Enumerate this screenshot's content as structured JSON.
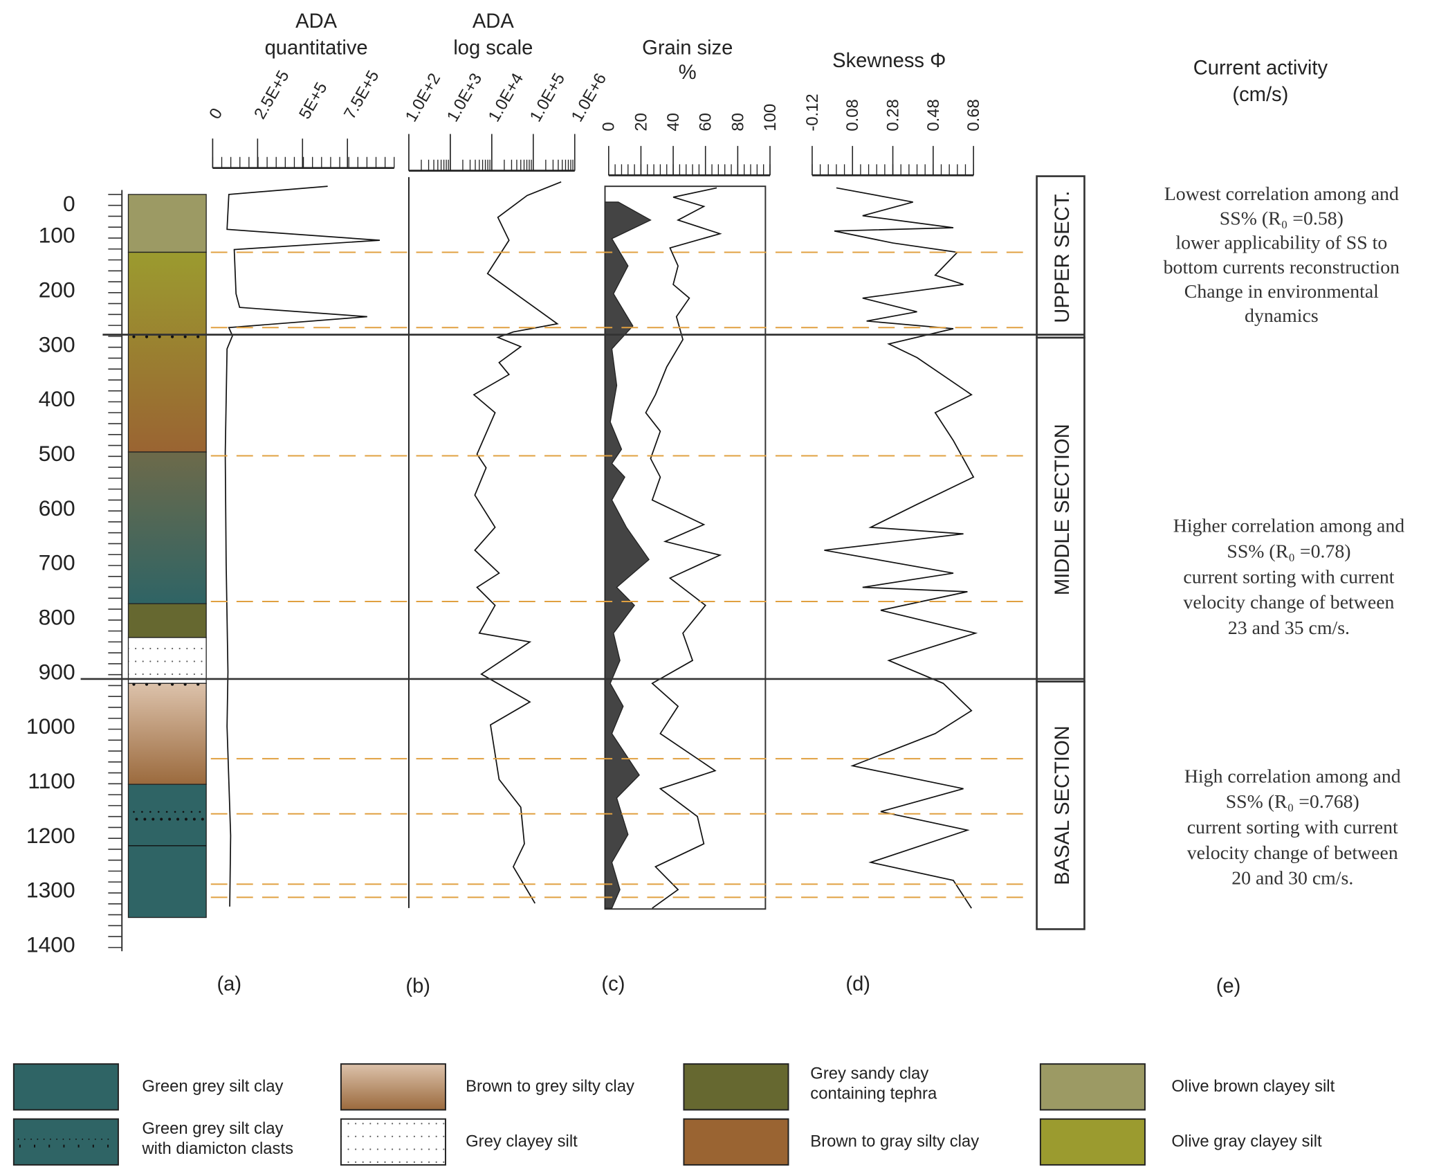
{
  "titles": {
    "ada_quant": [
      "ADA",
      "quantitative"
    ],
    "ada_log": [
      "ADA",
      "log scale"
    ],
    "grain": [
      "Grain size",
      "%"
    ],
    "skew": [
      "Skewness Φ"
    ],
    "current": [
      "Current activity",
      "(cm/s)"
    ]
  },
  "panel_labels": [
    "(a)",
    "(b)",
    "(c)",
    "(d)",
    "(e)"
  ],
  "sections": [
    {
      "label": "UPPER SECT.",
      "top": 0,
      "bottom": 287
    },
    {
      "label": "MIDDLE SECTION",
      "top": 287,
      "bottom": 918
    },
    {
      "label": "BASAL SECTION",
      "top": 918,
      "bottom": 1370
    }
  ],
  "notes": [
    {
      "lines": [
        "Lowest correlation among and",
        "SS% (R₀ =0.58)",
        "lower applicability of SS to",
        "bottom currents reconstruction",
        "Change in environmental",
        "dynamics"
      ]
    },
    {
      "lines": [
        "Higher correlation among and",
        "SS% (R₀ =0.78)",
        "current sorting with current",
        "velocity change of between",
        "23 and 35 cm/s."
      ]
    },
    {
      "lines": [
        "High correlation among and",
        "SS% (R₀ =0.768)",
        "current sorting with current",
        "velocity change of between",
        "20 and 30 cm/s."
      ]
    }
  ],
  "legend": [
    {
      "key": "green_grey",
      "label": [
        "Green grey silt clay"
      ]
    },
    {
      "key": "green_grey_diamicton",
      "label": [
        "Green grey silt clay",
        "with diamicton clasts"
      ]
    },
    {
      "key": "brown_grey_grad",
      "label": [
        "Brown to grey silty clay"
      ]
    },
    {
      "key": "grey_clayey_silt",
      "label": [
        "Grey clayey silt"
      ]
    },
    {
      "key": "grey_sandy_tephra",
      "label": [
        "Grey sandy clay",
        "containing tephra"
      ]
    },
    {
      "key": "brown_gray",
      "label": [
        "Brown to gray silty clay"
      ]
    },
    {
      "key": "olive_brown",
      "label": [
        "Olive brown clayey silt"
      ]
    },
    {
      "key": "olive_gray",
      "label": [
        "Olive gray clayey silt"
      ]
    }
  ],
  "colors": {
    "green_grey": "#2f6465",
    "brown_grey_top": "#dcc2ab",
    "brown_grey_bottom": "#9b6a3d",
    "grey_sandy_tephra": "#666830",
    "brown_gray": "#9a6432",
    "olive_brown": "#9c9a64",
    "olive_gray": "#9b9b2f",
    "dashed": "#e0a040",
    "fill": "#444444"
  },
  "lithology": [
    {
      "top": 25,
      "bottom": 131,
      "type": "olive_brown"
    },
    {
      "top": 131,
      "bottom": 497,
      "type": "olive_gray",
      "to": "brown_gray"
    },
    {
      "top": 497,
      "bottom": 775,
      "type": "brown_gray",
      "to": "green_grey"
    },
    {
      "top": 775,
      "bottom": 837,
      "type": "grey_sandy_tephra"
    },
    {
      "top": 837,
      "bottom": 921,
      "type": "grey_clayey_silt"
    },
    {
      "top": 921,
      "bottom": 1106,
      "type": "brown_grey_grad"
    },
    {
      "top": 1106,
      "bottom": 1350,
      "type": "green_grey_diamicton"
    }
  ],
  "chart_data": {
    "type": "line",
    "y_axis": {
      "label": "",
      "ticks": [
        0,
        100,
        200,
        300,
        400,
        500,
        600,
        700,
        800,
        900,
        1000,
        1100,
        1200,
        1300,
        1400
      ],
      "range": [
        0,
        1400
      ],
      "inverted": true
    },
    "event_depths": [
      131,
      269,
      504,
      771,
      1059,
      1160,
      1289,
      1313
    ],
    "section_boundaries": [
      287,
      918
    ],
    "panels": [
      {
        "id": "a",
        "ticks": [
          "0",
          "2.5E+5",
          "5E+5",
          "7.5E+5"
        ],
        "tick_values": [
          0,
          250000,
          500000,
          750000
        ],
        "range": [
          0,
          1010000
        ],
        "scale": "linear",
        "depth": [
          10,
          25,
          89,
          109,
          126,
          207,
          232,
          249,
          269,
          284,
          308,
          500,
          700,
          900,
          1000,
          1100,
          1200,
          1330
        ],
        "values": [
          640000,
          90000,
          80000,
          930000,
          120000,
          130000,
          150000,
          860000,
          90000,
          110000,
          80000,
          70000,
          75000,
          85000,
          80000,
          90000,
          100000,
          95000
        ]
      },
      {
        "id": "b",
        "ticks": [
          "1.0E+2",
          "1.0E+3",
          "1.0E+4",
          "1.0E+5",
          "1.0E+6"
        ],
        "tick_values": [
          100,
          1000,
          10000,
          100000,
          1000000
        ],
        "range": [
          100,
          1000000
        ],
        "scale": "log",
        "depth": [
          2,
          27,
          67,
          109,
          170,
          262,
          277,
          287,
          304,
          333,
          355,
          392,
          425,
          501,
          526,
          576,
          635,
          677,
          719,
          745,
          778,
          829,
          845,
          904,
          955,
          997,
          1097,
          1148,
          1215,
          1257,
          1324
        ],
        "values": [
          470000,
          71000,
          14000,
          26000,
          7900,
          380000,
          33000,
          14000,
          50000,
          15000,
          26000,
          3700,
          12000,
          4400,
          7300,
          3900,
          12000,
          3900,
          15000,
          4400,
          12000,
          5000,
          83000,
          5600,
          83000,
          9300,
          15000,
          50000,
          61000,
          33000,
          110000
        ]
      },
      {
        "id": "c",
        "ticks": [
          "0",
          "20",
          "40",
          "60",
          "80",
          "100"
        ],
        "tick_values": [
          0,
          20,
          40,
          60,
          80,
          100
        ],
        "range": [
          0,
          100
        ],
        "scale": "linear",
        "series": [
          {
            "style": "line",
            "depth": [
              13,
              30,
              47,
              72,
              97,
              123,
              156,
              190,
              215,
              249,
              291,
              341,
              392,
              425,
              459,
              509,
              543,
              585,
              630,
              661,
              686,
              728,
              778,
              829,
              879,
              921,
              963,
              1013,
              1081,
              1114,
              1165,
              1215,
              1257,
              1299,
              1333
            ],
            "values": [
              67,
              40,
              59,
              43,
              69,
              38,
              43,
              40,
              50,
              42,
              46,
              36,
              29,
              23,
              32,
              26,
              32,
              27,
              59,
              35,
              69,
              38,
              60,
              46,
              52,
              27,
              43,
              32,
              66,
              32,
              55,
              59,
              29,
              43,
              27
            ]
          },
          {
            "style": "filled",
            "depth": [
              39,
              72,
              106,
              156,
              207,
              266,
              308,
              375,
              442,
              492,
              518,
              543,
              585,
              635,
              694,
              745,
              778,
              829,
              879,
              921,
              963,
              1013,
              1089,
              1131,
              1198,
              1249,
              1299,
              1333
            ],
            "values": [
              6,
              26,
              2,
              12,
              3,
              15,
              2,
              5,
              1,
              8,
              2,
              10,
              2,
              11,
              25,
              5,
              16,
              3,
              7,
              1,
              9,
              2,
              19,
              5,
              12,
              2,
              7,
              2
            ]
          }
        ]
      },
      {
        "id": "d",
        "ticks": [
          "-0.12",
          "0.08",
          "0.28",
          "0.48",
          "0.68"
        ],
        "tick_values": [
          -0.12,
          0.08,
          0.28,
          0.48,
          0.68
        ],
        "range": [
          -0.12,
          0.68
        ],
        "scale": "linear",
        "depth": [
          13,
          39,
          64,
          86,
          92,
          114,
          131,
          173,
          190,
          215,
          240,
          257,
          271,
          299,
          324,
          392,
          425,
          476,
          543,
          593,
          635,
          647,
          677,
          719,
          745,
          753,
          787,
          829,
          879,
          921,
          971,
          1013,
          1072,
          1114,
          1156,
          1190,
          1249,
          1282,
          1333
        ],
        "values": [
          0.0,
          0.38,
          0.13,
          0.58,
          -0.01,
          0.28,
          0.6,
          0.49,
          0.63,
          0.13,
          0.4,
          0.15,
          0.58,
          0.26,
          0.4,
          0.67,
          0.49,
          0.58,
          0.68,
          0.4,
          0.17,
          0.63,
          -0.06,
          0.58,
          0.13,
          0.65,
          0.22,
          0.69,
          0.26,
          0.53,
          0.67,
          0.49,
          0.08,
          0.63,
          0.22,
          0.65,
          0.17,
          0.58,
          0.67
        ]
      }
    ]
  }
}
